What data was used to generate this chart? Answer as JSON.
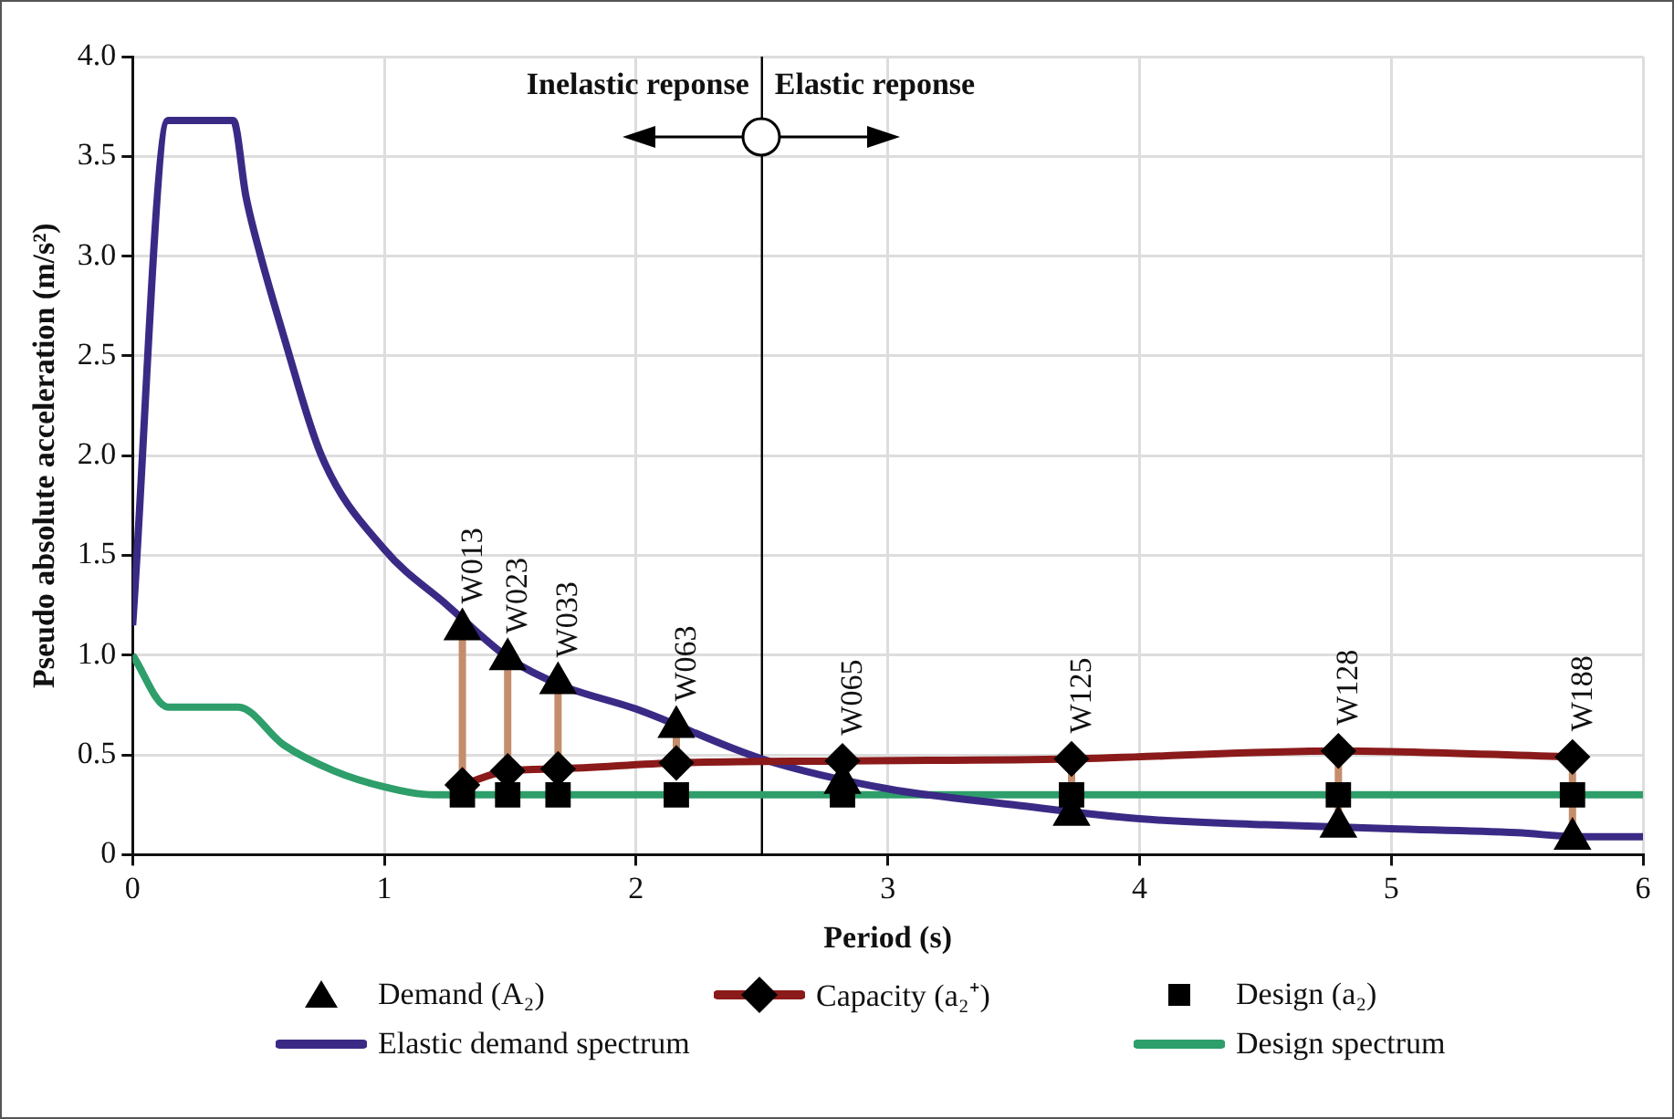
{
  "chart_data": {
    "type": "line",
    "xlabel": "Period (s)",
    "ylabel": "Pseudo absolute acceleration (m/s²)",
    "xlim": [
      0,
      6
    ],
    "xticks": [
      0,
      1,
      2,
      3,
      4,
      5,
      6
    ],
    "ylim": [
      0,
      4
    ],
    "yticks": [
      0,
      0.5,
      {
        "value": 1,
        "label": "1.0"
      },
      1.5,
      {
        "value": 2,
        "label": "2.0"
      },
      2.5,
      {
        "value": 3,
        "label": "3.0"
      },
      3.5,
      {
        "value": 4,
        "label": "4.0"
      }
    ],
    "grid": true,
    "legend": "bottom",
    "series": [
      {
        "name": "Demand (A₂)",
        "type": "scatter",
        "marker": "triangle",
        "color": "#000000",
        "x": [
          1.31,
          1.49,
          1.69,
          2.16,
          2.82,
          3.73,
          4.79,
          5.72
        ],
        "values": [
          1.13,
          0.98,
          0.86,
          0.64,
          0.36,
          0.2,
          0.14,
          0.08
        ]
      },
      {
        "name": "Capacity (a₂⁺)",
        "marker": "diamond",
        "color": "#8b1a1a",
        "x": [
          1.31,
          1.49,
          1.69,
          2.16,
          2.82,
          3.73,
          4.79,
          5.72
        ],
        "values": [
          0.35,
          0.42,
          0.43,
          0.46,
          0.47,
          0.48,
          0.52,
          0.49
        ]
      },
      {
        "name": "Design (a₂)",
        "type": "scatter",
        "marker": "square",
        "color": "#000000",
        "x": [
          1.31,
          1.49,
          1.69,
          2.16,
          2.82,
          3.73,
          4.79,
          5.72
        ],
        "values": [
          0.3,
          0.3,
          0.3,
          0.3,
          0.3,
          0.3,
          0.3,
          0.3
        ]
      },
      {
        "name": "Elastic demand spectrum",
        "marker": "none",
        "color": "#3b2a85",
        "x": [
          0,
          0.14,
          0.4,
          0.45,
          0.5,
          0.6,
          0.75,
          1,
          1.25,
          1.5,
          1.7,
          2,
          2.5,
          3,
          3.5,
          4,
          4.5,
          5,
          5.5,
          5.75,
          6
        ],
        "values": [
          1.15,
          3.68,
          3.68,
          3.3,
          3.04,
          2.6,
          2.0,
          1.53,
          1.25,
          0.98,
          0.85,
          0.73,
          0.48,
          0.33,
          0.25,
          0.18,
          0.15,
          0.13,
          0.11,
          0.09,
          0.09
        ]
      },
      {
        "name": "Design spectrum",
        "marker": "none",
        "color": "#2e9e6a",
        "x": [
          0,
          0.14,
          0.42,
          0.6,
          0.8,
          1,
          1.2,
          6
        ],
        "values": [
          1.0,
          0.74,
          0.74,
          0.55,
          0.42,
          0.34,
          0.3,
          0.3
        ]
      }
    ],
    "ref_lines": [
      {
        "axis": "x",
        "value": 2.5,
        "color": "#000000"
      }
    ],
    "annotations": [
      "Inelastic reponse",
      "Elastic reponse",
      {
        "text": "W013",
        "x": 1.31,
        "y": 1.13
      },
      {
        "text": "W023",
        "x": 1.49,
        "y": 0.98
      },
      {
        "text": "W033",
        "x": 1.69,
        "y": 0.86
      },
      {
        "text": "W063",
        "x": 2.16,
        "y": 0.64
      },
      {
        "text": "W065",
        "x": 2.82,
        "y": 0.47
      },
      {
        "text": "W125",
        "x": 3.73,
        "y": 0.48
      },
      {
        "text": "W128",
        "x": 4.79,
        "y": 0.52
      },
      {
        "text": "W188",
        "x": 5.72,
        "y": 0.49
      }
    ]
  }
}
